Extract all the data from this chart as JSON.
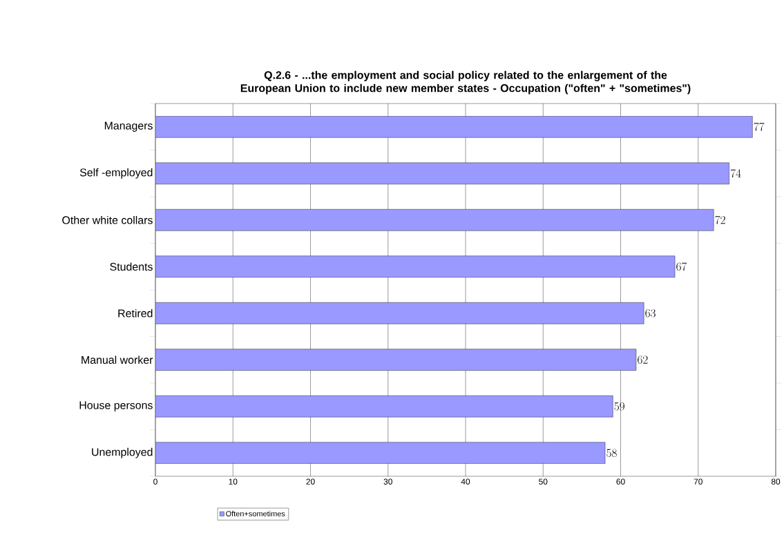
{
  "chart_data": {
    "type": "bar",
    "orientation": "horizontal",
    "title": "Q.2.6 - ...the employment and social policy related to the enlargement of the European Union to include new member states - Occupation (\"often\" + \"sometimes\")",
    "categories": [
      "Managers",
      "Self -employed",
      "Other white collars",
      "Students",
      "Retired",
      "Manual worker",
      "House persons",
      "Unemployed"
    ],
    "series": [
      {
        "name": "Often+sometimes",
        "color": "#9999ff",
        "values": [
          77,
          74,
          72,
          67,
          63,
          62,
          59,
          58
        ]
      }
    ],
    "xlim": [
      0,
      80
    ],
    "xticks": [
      0,
      10,
      20,
      30,
      40,
      50,
      60,
      70,
      80
    ],
    "grid": "x",
    "legend": "bottom",
    "data_labels": true
  }
}
